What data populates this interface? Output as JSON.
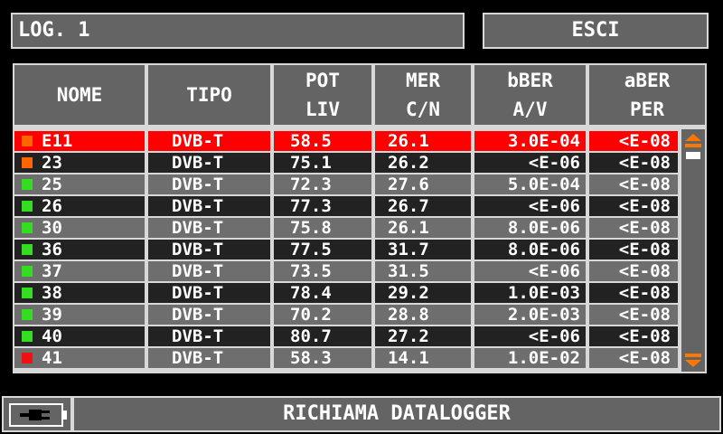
{
  "header": {
    "title": "LOG. 1",
    "exit_label": "ESCI"
  },
  "columns": [
    {
      "line1": "NOME",
      "line2": ""
    },
    {
      "line1": "TIPO",
      "line2": ""
    },
    {
      "line1": "POT",
      "line2": "LIV"
    },
    {
      "line1": "MER",
      "line2": "C/N"
    },
    {
      "line1": "bBER",
      "line2": "A/V"
    },
    {
      "line1": "aBER",
      "line2": "PER"
    }
  ],
  "rows": [
    {
      "status": "#ff6600",
      "nome": "E11",
      "tipo": "DVB-T",
      "pot": "58.5",
      "mer": "26.1",
      "bber": "3.0E-04",
      "aber": "<E-08",
      "selected": true
    },
    {
      "status": "#ff6600",
      "nome": "23",
      "tipo": "DVB-T",
      "pot": "75.1",
      "mer": "26.2",
      "bber": "<E-06",
      "aber": "<E-08"
    },
    {
      "status": "#33dd22",
      "nome": "25",
      "tipo": "DVB-T",
      "pot": "72.3",
      "mer": "27.6",
      "bber": "5.0E-04",
      "aber": "<E-08"
    },
    {
      "status": "#33dd22",
      "nome": "26",
      "tipo": "DVB-T",
      "pot": "77.3",
      "mer": "26.7",
      "bber": "<E-06",
      "aber": "<E-08"
    },
    {
      "status": "#33dd22",
      "nome": "30",
      "tipo": "DVB-T",
      "pot": "75.8",
      "mer": "26.1",
      "bber": "8.0E-06",
      "aber": "<E-08"
    },
    {
      "status": "#33dd22",
      "nome": "36",
      "tipo": "DVB-T",
      "pot": "77.5",
      "mer": "31.7",
      "bber": "8.0E-06",
      "aber": "<E-08"
    },
    {
      "status": "#33dd22",
      "nome": "37",
      "tipo": "DVB-T",
      "pot": "73.5",
      "mer": "31.5",
      "bber": "<E-06",
      "aber": "<E-08"
    },
    {
      "status": "#33dd22",
      "nome": "38",
      "tipo": "DVB-T",
      "pot": "78.4",
      "mer": "29.2",
      "bber": "1.0E-03",
      "aber": "<E-08"
    },
    {
      "status": "#33dd22",
      "nome": "39",
      "tipo": "DVB-T",
      "pot": "70.2",
      "mer": "28.8",
      "bber": "2.0E-03",
      "aber": "<E-08"
    },
    {
      "status": "#33dd22",
      "nome": "40",
      "tipo": "DVB-T",
      "pot": "80.7",
      "mer": "27.2",
      "bber": "<E-06",
      "aber": "<E-08"
    },
    {
      "status": "#ee1111",
      "nome": "41",
      "tipo": "DVB-T",
      "pot": "58.3",
      "mer": "14.1",
      "bber": "1.0E-02",
      "aber": "<E-08"
    }
  ],
  "colors": {
    "selected_row": "#ff0000",
    "row_light": "#6e6e6e",
    "row_dark": "#222222",
    "scroll_arrow": "#ff7700",
    "panel": "#646464",
    "border": "#d8d8d8"
  },
  "icons": {
    "scroll_up": "scroll-up-arrow-icon",
    "scroll_down": "scroll-down-arrow-icon",
    "battery": "battery-plug-icon"
  },
  "footer": {
    "button_label": "RICHIAMA DATALOGGER"
  }
}
